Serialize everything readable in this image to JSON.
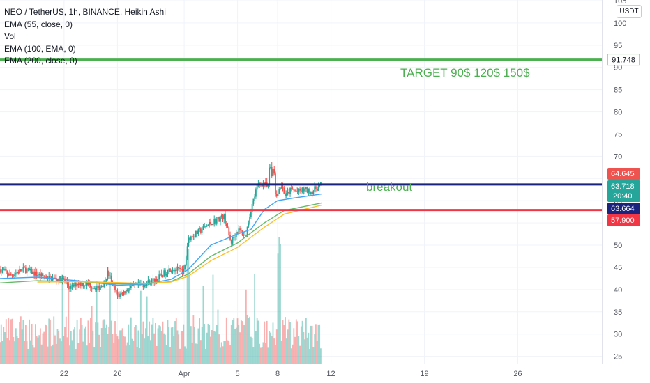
{
  "legend": {
    "symbol_line": "NEO / TetherUS, 1h, BINANCE, Heikin Ashi",
    "indicators": [
      "EMA (55, close, 0)",
      "Vol",
      "EMA (100, EMA, 0)",
      "EMA (200, close, 0)"
    ]
  },
  "currency": "USDT",
  "annotations": {
    "target": "TARGET 90$ 120$ 150$",
    "breakout": "breakout"
  },
  "chart_data": {
    "type": "candlestick",
    "title": "",
    "xlabel": "",
    "ylabel": "",
    "ylim": [
      24,
      105
    ],
    "y_ticks": [
      25,
      30,
      35,
      40,
      45,
      50,
      55,
      60,
      65,
      70,
      75,
      80,
      85,
      90,
      95,
      100,
      105
    ],
    "x_ticks": [
      {
        "label": "22",
        "x": 22
      },
      {
        "label": "26",
        "x": 26
      },
      {
        "label": "Apr",
        "x": 31
      },
      {
        "label": "5",
        "x": 35
      },
      {
        "label": "8",
        "x": 38
      },
      {
        "label": "12",
        "x": 42
      },
      {
        "label": "19",
        "x": 49
      },
      {
        "label": "26",
        "x": 56
      }
    ],
    "xlim": [
      17.2,
      62.3
    ],
    "price_series": [
      [
        17.2,
        44.5
      ],
      [
        18.0,
        43.2
      ],
      [
        19.0,
        44.6
      ],
      [
        20.0,
        43.4
      ],
      [
        21.0,
        42.5
      ],
      [
        22.0,
        42.2
      ],
      [
        22.5,
        40.3
      ],
      [
        23.0,
        41.5
      ],
      [
        24.0,
        41.0
      ],
      [
        24.5,
        40.2
      ],
      [
        25.0,
        41.5
      ],
      [
        25.3,
        44.0
      ],
      [
        25.7,
        40.5
      ],
      [
        26.0,
        38.6
      ],
      [
        26.5,
        39.5
      ],
      [
        27.0,
        40.5
      ],
      [
        28.0,
        41.3
      ],
      [
        29.0,
        42.5
      ],
      [
        30.0,
        44.8
      ],
      [
        30.7,
        44.2
      ],
      [
        31.0,
        44.0
      ],
      [
        31.3,
        51.5
      ],
      [
        32.0,
        52.8
      ],
      [
        33.0,
        55.0
      ],
      [
        34.0,
        56.5
      ],
      [
        34.5,
        50.5
      ],
      [
        35.0,
        53.5
      ],
      [
        35.6,
        52.0
      ],
      [
        36.0,
        58.0
      ],
      [
        36.5,
        63.5
      ],
      [
        37.0,
        64.0
      ],
      [
        37.5,
        62.0
      ],
      [
        38.0,
        61.5
      ],
      [
        38.3,
        63.5
      ],
      [
        38.6,
        61.0
      ],
      [
        39.0,
        62.5
      ],
      [
        39.5,
        62.0
      ],
      [
        40.0,
        62.5
      ],
      [
        40.5,
        62.0
      ],
      [
        41.0,
        63.0
      ],
      [
        41.3,
        63.7
      ]
    ],
    "candle_range": {
      "low": 37.9,
      "high": 68.7
    },
    "ema_series": [
      {
        "name": "EMA (55, close, 0)",
        "color": "#42a5f5",
        "points": [
          [
            17.2,
            42.5
          ],
          [
            20.0,
            42.8
          ],
          [
            23.0,
            42.0
          ],
          [
            26.0,
            41.0
          ],
          [
            28.0,
            41.2
          ],
          [
            30.0,
            42.3
          ],
          [
            31.3,
            44.5
          ],
          [
            33.0,
            50.0
          ],
          [
            35.0,
            52.5
          ],
          [
            36.0,
            53.5
          ],
          [
            37.0,
            58.0
          ],
          [
            38.0,
            60.0
          ],
          [
            39.0,
            60.5
          ],
          [
            41.3,
            61.5
          ]
        ]
      },
      {
        "name": "EMA (100, EMA, 0)",
        "color": "#66bb6a",
        "points": [
          [
            17.2,
            41.5
          ],
          [
            20.0,
            42.0
          ],
          [
            23.0,
            41.8
          ],
          [
            26.0,
            41.3
          ],
          [
            28.0,
            41.3
          ],
          [
            30.0,
            41.8
          ],
          [
            31.3,
            43.5
          ],
          [
            33.0,
            47.5
          ],
          [
            35.0,
            50.5
          ],
          [
            37.0,
            55.0
          ],
          [
            38.5,
            57.8
          ],
          [
            41.3,
            59.5
          ]
        ]
      },
      {
        "name": "EMA (200, close, 0)",
        "color": "#fbc02d",
        "points": [
          [
            20.0,
            41.7
          ],
          [
            23.0,
            41.8
          ],
          [
            26.0,
            41.6
          ],
          [
            28.0,
            41.4
          ],
          [
            30.0,
            41.7
          ],
          [
            31.3,
            43.0
          ],
          [
            33.0,
            46.5
          ],
          [
            35.0,
            49.5
          ],
          [
            37.0,
            54.0
          ],
          [
            38.5,
            57.0
          ],
          [
            41.3,
            59.0
          ]
        ]
      }
    ],
    "volume": {
      "color_up": "#26a69a",
      "color_down": "#ef5350",
      "max_fraction": 0.35
    },
    "horizontal_lines": [
      {
        "value": 91.748,
        "label": "91.748",
        "color": "#4caf50",
        "width": 3
      },
      {
        "value": 63.664,
        "label": "63.664",
        "color": "#1a237e",
        "width": 3
      },
      {
        "value": 57.9,
        "label": "57.900",
        "color": "#f23645",
        "width": 3
      }
    ],
    "price_tags": [
      {
        "value": 64.645,
        "label": "64.645",
        "color": "#ef5350"
      },
      {
        "value": 63.718,
        "label": "63.718",
        "color": "#26a69a",
        "sub": "20:40"
      },
      {
        "value": 63.664,
        "label": "63.664",
        "color": "#1a237e"
      },
      {
        "value": 57.9,
        "label": "57.900",
        "color": "#f23645"
      }
    ]
  }
}
